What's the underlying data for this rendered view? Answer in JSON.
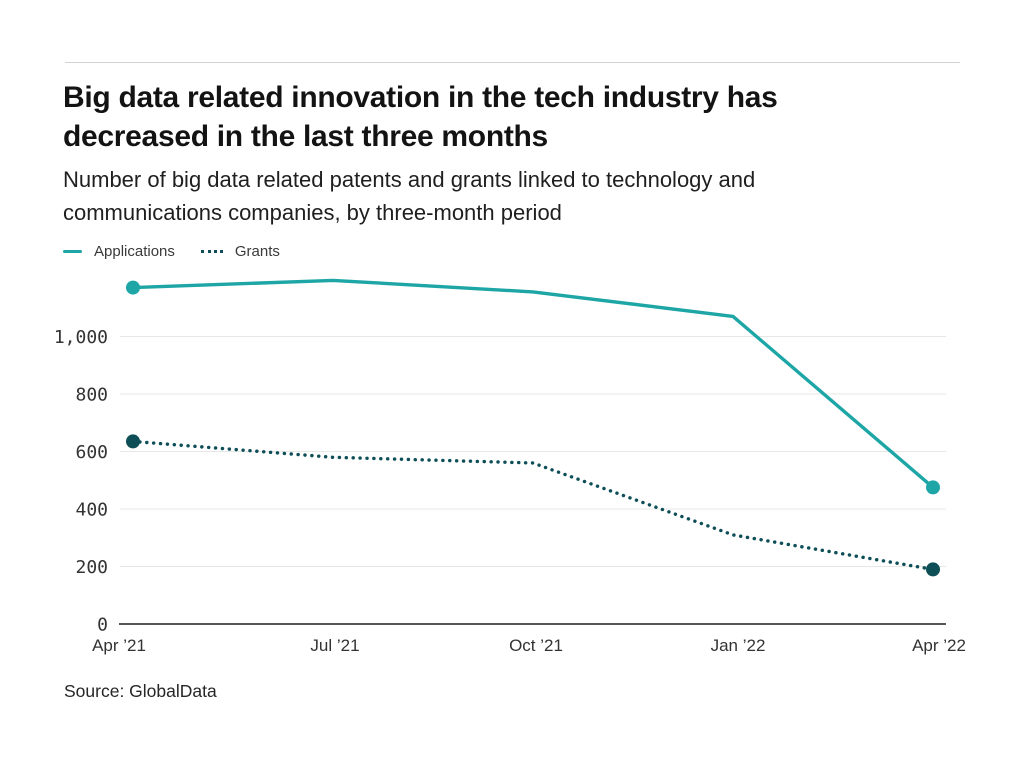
{
  "header": {
    "title_lines": [
      "Big data related innovation in the tech industry has",
      "decreased in the last three months"
    ],
    "subtitle_lines": [
      "Number of big data related patents and grants linked to technology and",
      "communications companies, by three-month period"
    ]
  },
  "legend": {
    "items": [
      {
        "label": "Applications",
        "style": "solid"
      },
      {
        "label": "Grants",
        "style": "dotted"
      }
    ]
  },
  "source": "Source: GlobalData",
  "colors": {
    "applications_teal": "#1ea6a6",
    "grants_dark_teal": "#0d4e57",
    "gridline": "#e7e7e7",
    "axis_line": "#55585a",
    "tick_text": "#333333"
  },
  "chart_data": {
    "type": "line",
    "title": "Big data related innovation in the tech industry has decreased in the last three months",
    "subtitle": "Number of big data related patents and grants linked to technology and communications companies, by three-month period",
    "categories": [
      "Apr ’21",
      "Jul ’21",
      "Oct ’21",
      "Jan ’22",
      "Apr ’22"
    ],
    "series": [
      {
        "name": "Applications",
        "values": [
          1170,
          1195,
          1155,
          1070,
          475
        ],
        "color": "#1ea6a6",
        "line_style": "solid"
      },
      {
        "name": "Grants",
        "values": [
          635,
          580,
          560,
          310,
          190
        ],
        "color": "#0d4e57",
        "line_style": "dotted"
      }
    ],
    "xlabel": "",
    "ylabel": "",
    "ylim": [
      0,
      1250
    ],
    "yticks": [
      0,
      200,
      400,
      600,
      800,
      1000
    ],
    "ytick_labels": [
      "0",
      "200",
      "400",
      "600",
      "800",
      "1,000"
    ],
    "grid": "horizontal",
    "legend_position": "top-left",
    "markers": "first-and-last-point",
    "source": "GlobalData"
  }
}
